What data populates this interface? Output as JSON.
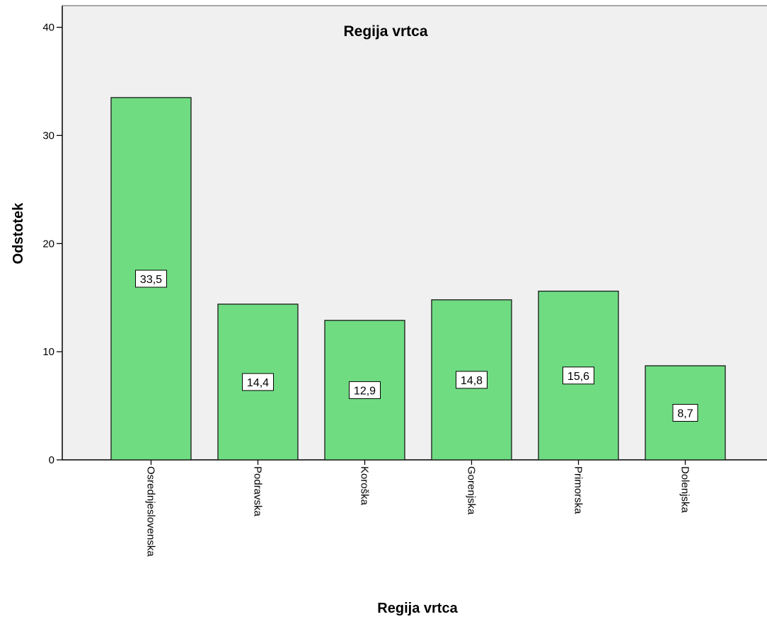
{
  "chart_data": {
    "type": "bar",
    "title": "Regija vrtca",
    "xlabel": "Regija vrtca",
    "ylabel": "Odstotek",
    "categories": [
      "Osrednjeslovenska",
      "Podravska",
      "Koroška",
      "Gorenjska",
      "Primorska",
      "Dolenjska"
    ],
    "values": [
      33.5,
      14.4,
      12.9,
      14.8,
      15.6,
      8.7
    ],
    "value_labels": [
      "33,5",
      "14,4",
      "12,9",
      "14,8",
      "15,6",
      "8,7"
    ],
    "yticks": [
      0,
      10,
      20,
      30,
      40
    ],
    "ytick_labels": [
      "0",
      "10",
      "20",
      "30",
      "40"
    ],
    "ylim": [
      0,
      42
    ],
    "grid": false,
    "legend": "none",
    "colors": {
      "bar_fill": "#6fdc82",
      "bar_stroke": "#1a1a1a",
      "plot_background": "#f0f0f0",
      "label_box": "#ffffff",
      "text": "#000000"
    }
  }
}
